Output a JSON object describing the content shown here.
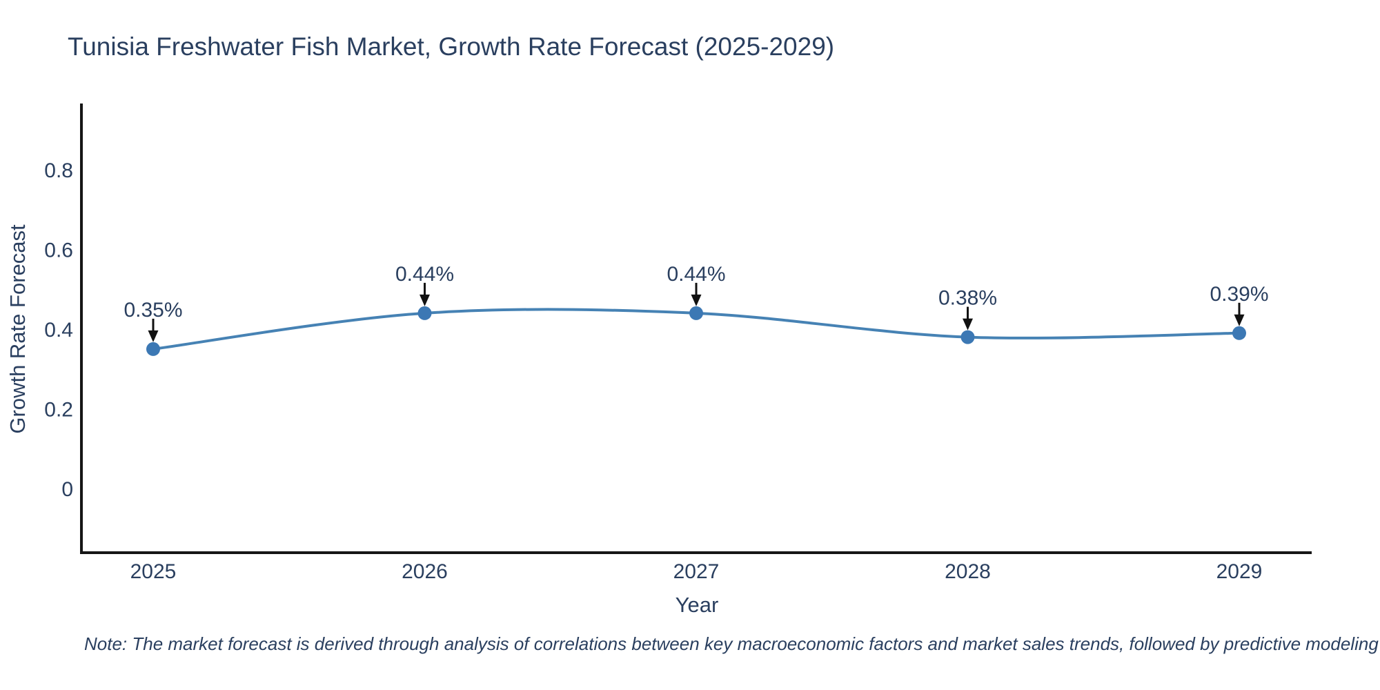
{
  "page": {
    "title": "Tunisia Freshwater Fish Market, Growth Rate Forecast (2025-2029)",
    "note": "Note: The market forecast is derived through analysis of correlations between key macroeconomic factors and market sales trends, followed by predictive modeling to project future sales"
  },
  "chart_data": {
    "type": "line",
    "title": "Tunisia Freshwater Fish Market, Growth Rate Forecast (2025-2029)",
    "categories": [
      "2025",
      "2026",
      "2027",
      "2028",
      "2029"
    ],
    "values": [
      0.35,
      0.44,
      0.44,
      0.38,
      0.39
    ],
    "point_labels": [
      "0.35%",
      "0.44%",
      "0.44%",
      "0.38%",
      "0.39%"
    ],
    "xlabel": "Year",
    "ylabel": "Growth Rate Forecast",
    "yticks": [
      "0",
      "0.2",
      "0.4",
      "0.6",
      "0.8"
    ],
    "ytick_values": [
      0,
      0.2,
      0.4,
      0.6,
      0.8
    ],
    "ylim": [
      -0.16,
      0.96
    ],
    "grid": false,
    "legend_position": "none",
    "line_shape": "spline",
    "annotation_arrows": true,
    "colors": {
      "line": "#4682b4",
      "marker": "#3c78b4",
      "axis": "#161616",
      "arrow": "#111111",
      "text": "#2a3f5f",
      "annotation_text": "#333a44",
      "note_text": "#1c1c1c"
    }
  }
}
